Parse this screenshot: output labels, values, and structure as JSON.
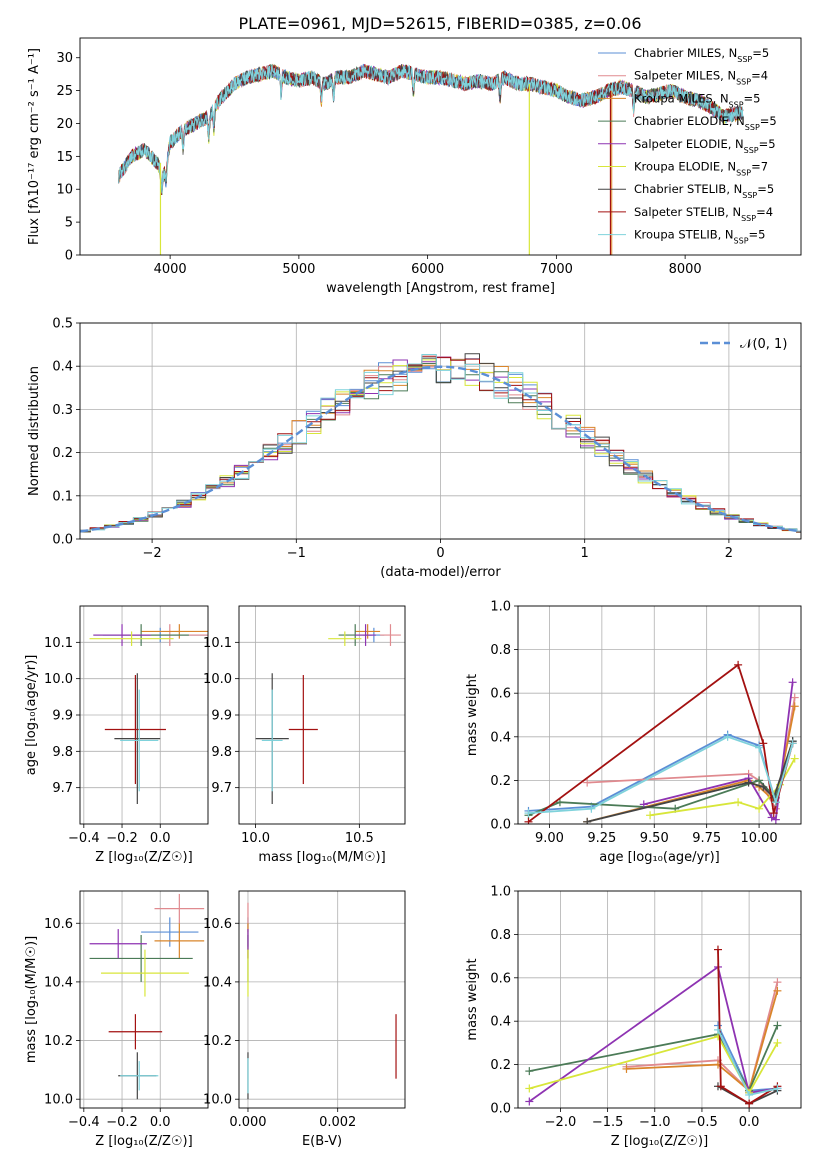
{
  "figure_title": "PLATE=0961, MJD=52615, FIBERID=0385, z=0.06",
  "colors": [
    "#5b8fd6",
    "#e08a8f",
    "#d9852b",
    "#4b7b57",
    "#8e33b2",
    "#d8e63a",
    "#444444",
    "#a31111",
    "#7fd2db"
  ],
  "chart_data": [
    {
      "type": "line",
      "id": "spectrum",
      "xlabel": "wavelength [Angstrom, rest frame]",
      "ylabel": "Flux [fλ10⁻¹⁷ erg cm⁻² s⁻¹ A⁻¹]",
      "xlim": [
        3300,
        8900
      ],
      "ylim": [
        0,
        33
      ],
      "xticks": [
        4000,
        5000,
        6000,
        7000,
        8000
      ],
      "yticks": [
        0,
        5,
        10,
        15,
        20,
        25,
        30
      ],
      "grid": false,
      "legend_placement": "top-right",
      "continuum": [
        [
          3600,
          12
        ],
        [
          3700,
          15
        ],
        [
          3800,
          16
        ],
        [
          3900,
          14
        ],
        [
          3950,
          12
        ],
        [
          4000,
          17
        ],
        [
          4100,
          19
        ],
        [
          4200,
          20
        ],
        [
          4300,
          21
        ],
        [
          4400,
          24
        ],
        [
          4500,
          26
        ],
        [
          4600,
          27
        ],
        [
          4700,
          27.5
        ],
        [
          4800,
          28
        ],
        [
          4900,
          27
        ],
        [
          5000,
          26.5
        ],
        [
          5100,
          27
        ],
        [
          5200,
          26
        ],
        [
          5300,
          27
        ],
        [
          5400,
          27
        ],
        [
          5500,
          28
        ],
        [
          5600,
          27.5
        ],
        [
          5700,
          27
        ],
        [
          5800,
          28
        ],
        [
          5900,
          27.5
        ],
        [
          6000,
          27
        ],
        [
          6100,
          27
        ],
        [
          6200,
          26.5
        ],
        [
          6300,
          26
        ],
        [
          6400,
          26.5
        ],
        [
          6500,
          26
        ],
        [
          6600,
          27
        ],
        [
          6700,
          26
        ],
        [
          6800,
          26
        ],
        [
          6900,
          25.5
        ],
        [
          7000,
          25
        ],
        [
          7100,
          24
        ],
        [
          7200,
          23.5
        ],
        [
          7300,
          24
        ],
        [
          7400,
          25
        ],
        [
          7500,
          25.5
        ],
        [
          7600,
          25
        ],
        [
          7700,
          24
        ],
        [
          7800,
          24.5
        ],
        [
          7900,
          25
        ],
        [
          8000,
          24
        ],
        [
          8100,
          23.5
        ],
        [
          8200,
          22.5
        ],
        [
          8300,
          21
        ],
        [
          8400,
          21.5
        ]
      ],
      "series": [
        {
          "name": "Chabrier MILES, N_SSP=5",
          "label_main": "Chabrier MILES, N",
          "label_sub": "SSP",
          "label_tail": "=5"
        },
        {
          "name": "Salpeter MILES, N_SSP=4",
          "label_main": "Salpeter MILES, N",
          "label_sub": "SSP",
          "label_tail": "=4"
        },
        {
          "name": "Kroupa MILES, N_SSP=5",
          "label_main": "Kroupa MILES, N",
          "label_sub": "SSP",
          "label_tail": "=5"
        },
        {
          "name": "Chabrier ELODIE, N_SSP=5",
          "label_main": "Chabrier ELODIE, N",
          "label_sub": "SSP",
          "label_tail": "=5"
        },
        {
          "name": "Salpeter ELODIE, N_SSP=5",
          "label_main": "Salpeter ELODIE, N",
          "label_sub": "SSP",
          "label_tail": "=5"
        },
        {
          "name": "Kroupa ELODIE, N_SSP=7",
          "label_main": "Kroupa ELODIE, N",
          "label_sub": "SSP",
          "label_tail": "=7"
        },
        {
          "name": "Chabrier STELIB, N_SSP=5",
          "label_main": "Chabrier STELIB, N",
          "label_sub": "SSP",
          "label_tail": "=5"
        },
        {
          "name": "Salpeter STELIB, N_SSP=4",
          "label_main": "Salpeter STELIB, N",
          "label_sub": "SSP",
          "label_tail": "=4"
        },
        {
          "name": "Kroupa STELIB, N_SSP=5",
          "label_main": "Kroupa STELIB, N",
          "label_sub": "SSP",
          "label_tail": "=5"
        }
      ]
    },
    {
      "type": "line",
      "id": "residuals",
      "xlabel": "(data-model)/error",
      "ylabel": "Normed distribution",
      "xlim": [
        -2.5,
        2.5
      ],
      "ylim": [
        0,
        0.5
      ],
      "xticks": [
        -2,
        -1,
        0,
        1,
        2
      ],
      "xticklabels": [
        "−2",
        "−1",
        "0",
        "1",
        "2"
      ],
      "yticks": [
        0,
        0.1,
        0.2,
        0.3,
        0.4,
        0.5
      ],
      "yticklabels": [
        "0.0",
        "0.1",
        "0.2",
        "0.3",
        "0.4",
        "0.5"
      ],
      "grid": true,
      "legend_placement": "top-right",
      "gaussian_label": "𝒩(0, 1)",
      "bin_width": 0.1
    },
    {
      "type": "scatter",
      "id": "age_vs_Z",
      "xlabel": "Z [log₁₀(Z/Z☉)]",
      "ylabel": "age  [log₁₀(age/yr)]",
      "xlim": [
        -0.42,
        0.25
      ],
      "ylim": [
        9.6,
        10.2
      ],
      "xticks": [
        -0.4,
        -0.2,
        0.0
      ],
      "xticklabels": [
        "−0.4",
        "−0.2",
        "0.0"
      ],
      "yticks": [
        9.7,
        9.8,
        9.9,
        10.0,
        10.1
      ],
      "yticklabels": [
        "9.7",
        "9.8",
        "9.9",
        "10.0",
        "10.1"
      ],
      "grid": true,
      "points": [
        {
          "x": 0.0,
          "y": 10.12,
          "xe": 0.3,
          "ye": 0.02
        },
        {
          "x": 0.05,
          "y": 10.12,
          "xe": 0.25,
          "ye": 0.03
        },
        {
          "x": 0.1,
          "y": 10.13,
          "xe": 0.2,
          "ye": 0.02
        },
        {
          "x": -0.1,
          "y": 10.12,
          "xe": 0.25,
          "ye": 0.03
        },
        {
          "x": -0.2,
          "y": 10.12,
          "xe": 0.15,
          "ye": 0.03
        },
        {
          "x": -0.15,
          "y": 10.11,
          "xe": 0.22,
          "ye": 0.02
        },
        {
          "x": -0.12,
          "y": 9.835,
          "xe": 0.12,
          "ye": 0.18
        },
        {
          "x": -0.13,
          "y": 9.86,
          "xe": 0.16,
          "ye": 0.15
        },
        {
          "x": -0.11,
          "y": 9.83,
          "xe": 0.1,
          "ye": 0.14
        }
      ]
    },
    {
      "type": "scatter",
      "id": "age_vs_mass",
      "xlabel": "mass [log₁₀(M/M☉)]",
      "ylabel": "",
      "xlim": [
        9.92,
        10.72
      ],
      "ylim": [
        9.6,
        10.2
      ],
      "xticks": [
        10.0,
        10.5
      ],
      "xticklabels": [
        "10.0",
        "10.5"
      ],
      "yticks": [
        9.7,
        9.8,
        9.9,
        10.0,
        10.1
      ],
      "yticklabels": [
        "9.7",
        "9.8",
        "9.9",
        "10.0",
        "10.1"
      ],
      "grid": true,
      "points": [
        {
          "x": 10.57,
          "y": 10.12,
          "xe": 0.05,
          "ye": 0.02
        },
        {
          "x": 10.65,
          "y": 10.12,
          "xe": 0.05,
          "ye": 0.03
        },
        {
          "x": 10.54,
          "y": 10.13,
          "xe": 0.06,
          "ye": 0.02
        },
        {
          "x": 10.48,
          "y": 10.12,
          "xe": 0.08,
          "ye": 0.03
        },
        {
          "x": 10.53,
          "y": 10.12,
          "xe": 0.05,
          "ye": 0.03
        },
        {
          "x": 10.43,
          "y": 10.11,
          "xe": 0.08,
          "ye": 0.02
        },
        {
          "x": 10.08,
          "y": 9.835,
          "xe": 0.08,
          "ye": 0.18
        },
        {
          "x": 10.23,
          "y": 9.86,
          "xe": 0.07,
          "ye": 0.15
        },
        {
          "x": 10.08,
          "y": 9.83,
          "xe": 0.05,
          "ye": 0.14
        }
      ]
    },
    {
      "type": "line",
      "id": "weight_vs_age",
      "xlabel": "age  [log₁₀(age/yr)]",
      "ylabel": "mass weight",
      "xlim": [
        8.85,
        10.2
      ],
      "ylim": [
        0,
        1.0
      ],
      "xticks": [
        9.0,
        9.25,
        9.5,
        9.75,
        10.0
      ],
      "xticklabels": [
        "9.00",
        "9.25",
        "9.50",
        "9.75",
        "10.00"
      ],
      "yticks": [
        0,
        0.2,
        0.4,
        0.6,
        0.8,
        1.0
      ],
      "yticklabels": [
        "0.0",
        "0.2",
        "0.4",
        "0.6",
        "0.8",
        "1.0"
      ],
      "grid": true,
      "series": [
        {
          "x": [
            8.9,
            9.2,
            9.85,
            10.0,
            10.08,
            10.16
          ],
          "y": [
            0.06,
            0.08,
            0.41,
            0.36,
            0.1,
            0.38
          ]
        },
        {
          "x": [
            9.18,
            9.95,
            10.0,
            10.08,
            10.17
          ],
          "y": [
            0.19,
            0.23,
            0.2,
            0.07,
            0.58
          ]
        },
        {
          "x": [
            9.18,
            9.95,
            10.0,
            10.08,
            10.17
          ],
          "y": [
            0.01,
            0.2,
            0.17,
            0.1,
            0.54
          ]
        },
        {
          "x": [
            8.9,
            9.05,
            9.6,
            10.0,
            10.08,
            10.16
          ],
          "y": [
            0.04,
            0.1,
            0.07,
            0.2,
            0.12,
            0.38
          ]
        },
        {
          "x": [
            9.45,
            9.95,
            10.06,
            10.08,
            10.16
          ],
          "y": [
            0.09,
            0.21,
            0.03,
            0.02,
            0.65
          ]
        },
        {
          "x": [
            9.48,
            9.9,
            10.0,
            10.1,
            10.17
          ],
          "y": [
            0.04,
            0.1,
            0.07,
            0.18,
            0.3
          ]
        },
        {
          "x": [
            9.18,
            9.95,
            10.02,
            10.07,
            10.16
          ],
          "y": [
            0.01,
            0.19,
            0.17,
            0.12,
            0.38
          ]
        },
        {
          "x": [
            8.9,
            9.9,
            10.02,
            10.07,
            10.16
          ],
          "y": [
            0.01,
            0.73,
            0.37,
            0.05,
            0.37
          ]
        },
        {
          "x": [
            8.9,
            9.2,
            9.85,
            10.0,
            10.08,
            10.16
          ],
          "y": [
            0.05,
            0.07,
            0.4,
            0.35,
            0.1,
            0.37
          ]
        }
      ]
    },
    {
      "type": "scatter",
      "id": "mass_vs_Z",
      "xlabel": "Z [log₁₀(Z/Z☉)]",
      "ylabel": "mass [log₁₀(M/M☉)]",
      "xlim": [
        -0.42,
        0.25
      ],
      "ylim": [
        9.97,
        10.71
      ],
      "xticks": [
        -0.4,
        -0.2,
        0.0
      ],
      "xticklabels": [
        "−0.4",
        "−0.2",
        "0.0"
      ],
      "yticks": [
        10.0,
        10.2,
        10.4,
        10.6
      ],
      "yticklabels": [
        "10.0",
        "10.2",
        "10.4",
        "10.6"
      ],
      "grid": true,
      "points": [
        {
          "x": 0.05,
          "y": 10.57,
          "xe": 0.15,
          "ye": 0.05
        },
        {
          "x": 0.1,
          "y": 10.65,
          "xe": 0.13,
          "ye": 0.05
        },
        {
          "x": 0.1,
          "y": 10.54,
          "xe": 0.13,
          "ye": 0.06
        },
        {
          "x": -0.1,
          "y": 10.48,
          "xe": 0.27,
          "ye": 0.08
        },
        {
          "x": -0.22,
          "y": 10.53,
          "xe": 0.15,
          "ye": 0.05
        },
        {
          "x": -0.08,
          "y": 10.43,
          "xe": 0.23,
          "ye": 0.08
        },
        {
          "x": -0.12,
          "y": 10.08,
          "xe": 0.1,
          "ye": 0.08
        },
        {
          "x": -0.13,
          "y": 10.23,
          "xe": 0.14,
          "ye": 0.06
        },
        {
          "x": -0.11,
          "y": 10.08,
          "xe": 0.1,
          "ye": 0.05
        }
      ]
    },
    {
      "type": "scatter",
      "id": "mass_vs_EBV",
      "xlabel": "E(B-V)",
      "ylabel": "",
      "xlim": [
        -0.0002,
        0.0035
      ],
      "ylim": [
        9.97,
        10.71
      ],
      "xticks": [
        0.0,
        0.002
      ],
      "xticklabels": [
        "0.000",
        "0.002"
      ],
      "yticks": [
        10.0,
        10.2,
        10.4,
        10.6
      ],
      "yticklabels": [
        "10.0",
        "10.2",
        "10.4",
        "10.6"
      ],
      "grid": true,
      "points": [
        {
          "x": 0.0,
          "y": 10.57,
          "xe": 0.0,
          "ye": 0.05
        },
        {
          "x": 0.0,
          "y": 10.62,
          "xe": 0.0,
          "ye": 0.05
        },
        {
          "x": 0.0,
          "y": 10.54,
          "xe": 0.0,
          "ye": 0.06
        },
        {
          "x": 0.0,
          "y": 10.48,
          "xe": 0.0,
          "ye": 0.08
        },
        {
          "x": 0.0,
          "y": 10.53,
          "xe": 0.0,
          "ye": 0.05
        },
        {
          "x": 0.0,
          "y": 10.43,
          "xe": 0.0,
          "ye": 0.08
        },
        {
          "x": 0.0,
          "y": 10.08,
          "xe": 0.0,
          "ye": 0.08
        },
        {
          "x": 0.0033,
          "y": 10.18,
          "xe": 0.0,
          "ye": 0.11
        },
        {
          "x": 0.0,
          "y": 10.08,
          "xe": 0.0,
          "ye": 0.06
        }
      ]
    },
    {
      "type": "line",
      "id": "weight_vs_Z",
      "xlabel": "Z [log₁₀(Z/Z☉)]",
      "ylabel": "mass weight",
      "xlim": [
        -2.45,
        0.55
      ],
      "ylim": [
        0,
        1.0
      ],
      "xticks": [
        -2.0,
        -1.5,
        -1.0,
        -0.5,
        0.0
      ],
      "xticklabels": [
        "−2.0",
        "−1.5",
        "−1.0",
        "−0.5",
        "0.0"
      ],
      "yticks": [
        0,
        0.2,
        0.4,
        0.6,
        0.8,
        1.0
      ],
      "yticklabels": [
        "0.0",
        "0.2",
        "0.4",
        "0.6",
        "0.8",
        "1.0"
      ],
      "grid": true,
      "series": [
        {
          "x": [
            -0.33,
            0.0,
            0.3
          ],
          "y": [
            0.38,
            0.08,
            0.09
          ]
        },
        {
          "x": [
            -1.3,
            -0.33,
            0.0,
            0.3
          ],
          "y": [
            0.19,
            0.22,
            0.08,
            0.58
          ]
        },
        {
          "x": [
            -1.3,
            -0.33,
            0.0,
            0.3
          ],
          "y": [
            0.18,
            0.2,
            0.08,
            0.54
          ]
        },
        {
          "x": [
            -2.33,
            -0.33,
            0.0,
            0.3
          ],
          "y": [
            0.17,
            0.34,
            0.08,
            0.38
          ]
        },
        {
          "x": [
            -2.33,
            -0.33,
            0.0,
            0.3
          ],
          "y": [
            0.03,
            0.65,
            0.07,
            0.09
          ]
        },
        {
          "x": [
            -2.33,
            -0.33,
            0.0,
            0.3
          ],
          "y": [
            0.09,
            0.33,
            0.07,
            0.3
          ]
        },
        {
          "x": [
            -0.33,
            0.0,
            0.3
          ],
          "y": [
            0.1,
            0.02,
            0.08
          ]
        },
        {
          "x": [
            -0.33,
            -0.3,
            0.0,
            0.3
          ],
          "y": [
            0.73,
            0.1,
            0.02,
            0.1
          ]
        },
        {
          "x": [
            -0.33,
            0.0,
            0.3
          ],
          "y": [
            0.36,
            0.06,
            0.09
          ]
        }
      ]
    }
  ]
}
